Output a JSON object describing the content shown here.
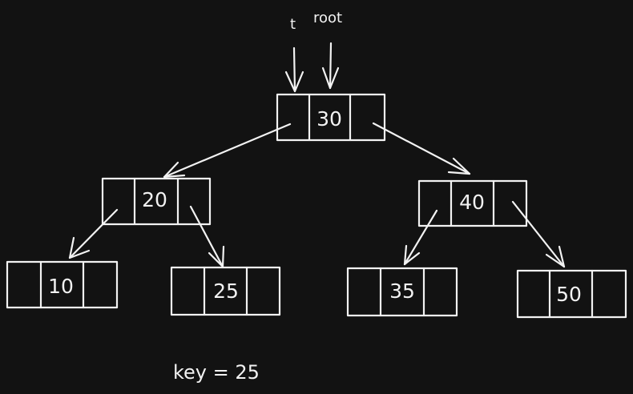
{
  "pointers": {
    "t": "t",
    "root": "root"
  },
  "nodes": {
    "n30": "30",
    "n20": "20",
    "n40": "40",
    "n10": "10",
    "n25": "25",
    "n35": "35",
    "n50": "50"
  },
  "key_label": "key = 25",
  "colors": {
    "background": "#121212",
    "ink": "#f2f2f2"
  }
}
